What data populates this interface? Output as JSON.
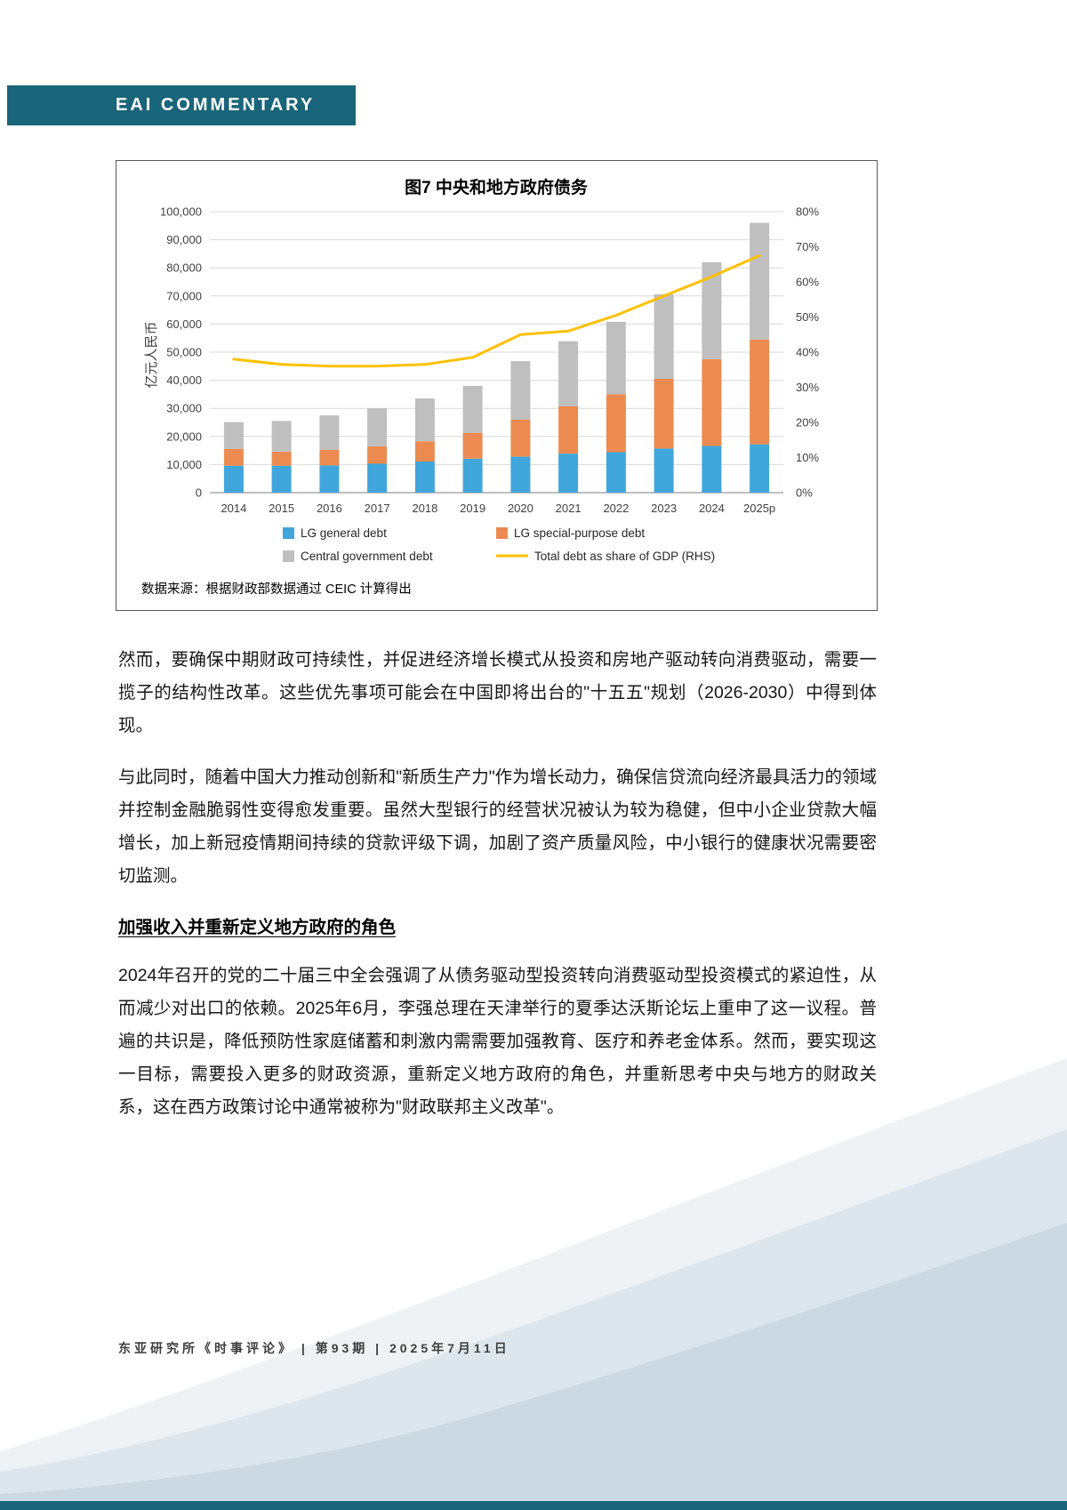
{
  "theme": {
    "accent_teal": "#19657A",
    "bar_blue": "#41A6DB",
    "bar_orange": "#EC8B51",
    "bar_gray": "#BFBFBF",
    "line_yellow": "#FFC000"
  },
  "header": {
    "title": "EAI COMMENTARY"
  },
  "chart_data": {
    "type": "bar",
    "title": "图7 中央和地方政府债务",
    "ylabel": "亿元人民币",
    "categories": [
      "2014",
      "2015",
      "2016",
      "2017",
      "2018",
      "2019",
      "2020",
      "2021",
      "2022",
      "2023",
      "2024",
      "2025p"
    ],
    "series": [
      {
        "name": "LG general debt",
        "type": "bar",
        "color": "#41A6DB",
        "values": [
          9600,
          9600,
          9700,
          10300,
          11100,
          12100,
          12800,
          13900,
          14400,
          15700,
          16600,
          17200
        ]
      },
      {
        "name": "LG special-purpose debt",
        "type": "bar",
        "color": "#EC8B51",
        "values": [
          6000,
          5000,
          5600,
          6200,
          7200,
          9200,
          13200,
          16800,
          20600,
          24800,
          30900,
          37300
        ]
      },
      {
        "name": "Central government debt",
        "type": "bar",
        "color": "#BFBFBF",
        "values": [
          9500,
          10900,
          12200,
          13500,
          15200,
          16700,
          20800,
          23200,
          25800,
          30100,
          34500,
          41500
        ]
      },
      {
        "name": "Total debt as share of GDP (RHS)",
        "type": "line",
        "color": "#FFC000",
        "values": [
          38,
          36.5,
          36,
          36,
          36.5,
          38.5,
          45,
          46,
          50.5,
          56,
          61.5,
          67.5
        ]
      }
    ],
    "left_axis": {
      "min": 0,
      "max": 100000,
      "step": 10000
    },
    "right_axis": {
      "min": 0,
      "max": 80,
      "step": 10,
      "suffix": "%"
    },
    "grid": true,
    "legend_position": "bottom",
    "source": "数据来源：根据财政部数据通过 CEIC 计算得出"
  },
  "body": {
    "p1": "然而，要确保中期财政可持续性，并促进经济增长模式从投资和房地产驱动转向消费驱动，需要一揽子的结构性改革。这些优先事项可能会在中国即将出台的\"十五五\"规划（2026-2030）中得到体现。",
    "p2": "与此同时，随着中国大力推动创新和\"新质生产力\"作为增长动力，确保信贷流向经济最具活力的领域并控制金融脆弱性变得愈发重要。虽然大型银行的经营状况被认为较为稳健，但中小企业贷款大幅增长，加上新冠疫情期间持续的贷款评级下调，加剧了资产质量风险，中小银行的健康状况需要密切监测。",
    "heading": "加强收入并重新定义地方政府的角色",
    "p3": "2024年召开的党的二十届三中全会强调了从债务驱动型投资转向消费驱动型投资模式的紧迫性，从而减少对出口的依赖。2025年6月，李强总理在天津举行的夏季达沃斯论坛上重申了这一议程。普遍的共识是，降低预防性家庭储蓄和刺激内需需要加强教育、医疗和养老金体系。然而，要实现这一目标，需要投入更多的财政资源，重新定义地方政府的角色，并重新思考中央与地方的财政关系，这在西方政策讨论中通常被称为\"财政联邦主义改革\"。"
  },
  "footer": {
    "text": "东亚研究所《时事评论》 | 第93期 | 2025年7月11日"
  }
}
